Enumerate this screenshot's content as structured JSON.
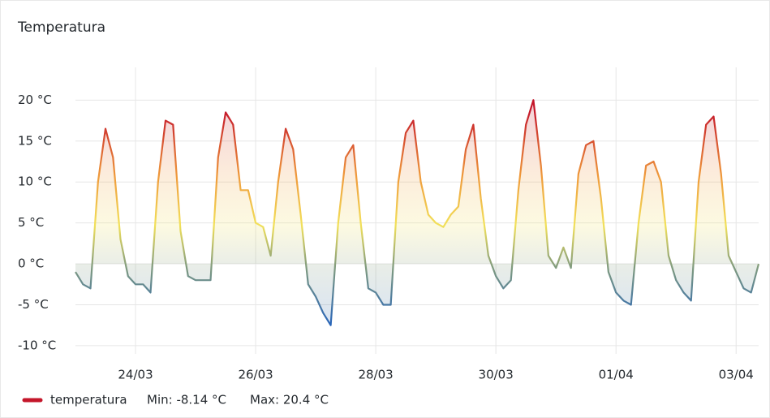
{
  "chart_data": {
    "type": "line",
    "title": "Temperatura",
    "categories": [
      null,
      null,
      null,
      null,
      null,
      null,
      null,
      null,
      "24/03",
      null,
      null,
      null,
      null,
      null,
      null,
      null,
      null,
      null,
      null,
      null,
      null,
      null,
      null,
      null,
      "26/03",
      null,
      null,
      null,
      null,
      null,
      null,
      null,
      null,
      null,
      null,
      null,
      null,
      null,
      null,
      null,
      "28/03",
      null,
      null,
      null,
      null,
      null,
      null,
      null,
      null,
      null,
      null,
      null,
      null,
      null,
      null,
      null,
      "30/03",
      null,
      null,
      null,
      null,
      null,
      null,
      null,
      null,
      null,
      null,
      null,
      null,
      null,
      null,
      null,
      "01/04",
      null,
      null,
      null,
      null,
      null,
      null,
      null,
      null,
      null,
      null,
      null,
      null,
      null,
      null,
      null,
      "03/04",
      null,
      null,
      null
    ],
    "series": [
      {
        "name": "temperatura",
        "color": "#c4162a",
        "values": [
          -1,
          -2.5,
          -3,
          10,
          16.5,
          13,
          3,
          -1.5,
          -2.5,
          -2.5,
          -3.5,
          10,
          17.5,
          17,
          4,
          -1.5,
          -2,
          -2,
          -2,
          13,
          18.5,
          17,
          9,
          9,
          5,
          4.5,
          1,
          10,
          16.5,
          14,
          6,
          -2.5,
          -4,
          -6,
          -7.5,
          5,
          13,
          14.5,
          5,
          -3,
          -3.5,
          -5,
          -5,
          10,
          16,
          17.5,
          10,
          6,
          5,
          4.5,
          6,
          7,
          14,
          17,
          8,
          1,
          -1.5,
          -3,
          -2,
          9,
          17,
          20,
          12,
          1,
          -0.5,
          2,
          -0.5,
          11,
          14.5,
          15,
          8,
          -1,
          -3.5,
          -4.5,
          -5,
          5,
          12,
          12.5,
          10,
          1,
          -2,
          -3.5,
          -4.5,
          10,
          17,
          18,
          11,
          1,
          -1,
          -3,
          -3.5,
          0
        ]
      }
    ],
    "legend_stats": [
      "Min: -8.14 °C",
      "Max: 20.4 °C"
    ],
    "ylim": [
      -11,
      24
    ],
    "yticks": [
      {
        "value": -10,
        "label": "-10 °C"
      },
      {
        "value": -5,
        "label": "-5 °C"
      },
      {
        "value": 0,
        "label": "0 °C"
      },
      {
        "value": 5,
        "label": "5 °C"
      },
      {
        "value": 10,
        "label": "10 °C"
      },
      {
        "value": 15,
        "label": "15 °C"
      },
      {
        "value": 20,
        "label": "20 °C"
      }
    ],
    "grid": true
  }
}
